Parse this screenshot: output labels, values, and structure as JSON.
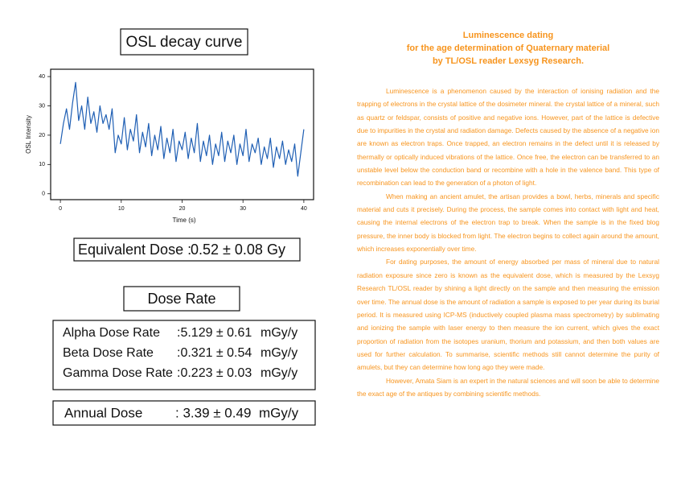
{
  "chart_data": {
    "type": "line",
    "title": "OSL decay curve",
    "x_label": "Time (s)",
    "y_label": "OSL Intensity",
    "x": [
      0,
      0.5,
      1,
      1.5,
      2,
      2.5,
      3,
      3.5,
      4,
      4.5,
      5,
      5.5,
      6,
      6.5,
      7,
      7.5,
      8,
      8.5,
      9,
      9.5,
      10,
      10.5,
      11,
      11.5,
      12,
      12.5,
      13,
      13.5,
      14,
      14.5,
      15,
      15.5,
      16,
      16.5,
      17,
      17.5,
      18,
      18.5,
      19,
      19.5,
      20,
      20.5,
      21,
      21.5,
      22,
      22.5,
      23,
      23.5,
      24,
      24.5,
      25,
      25.5,
      26,
      26.5,
      27,
      27.5,
      28,
      28.5,
      29,
      29.5,
      30,
      30.5,
      31,
      31.5,
      32,
      32.5,
      33,
      33.5,
      34,
      34.5,
      35,
      35.5,
      36,
      36.5,
      37,
      37.5,
      38,
      38.5,
      39,
      39.5,
      40
    ],
    "values": [
      17,
      24,
      29,
      22,
      31,
      38,
      25,
      30,
      22,
      33,
      24,
      28,
      21,
      30,
      24,
      27,
      22,
      29,
      14,
      20,
      17,
      26,
      15,
      22,
      18,
      27,
      14,
      21,
      16,
      24,
      13,
      20,
      15,
      23,
      12,
      19,
      14,
      22,
      11,
      18,
      15,
      21,
      12,
      19,
      14,
      24,
      11,
      18,
      13,
      20,
      10,
      17,
      13,
      21,
      11,
      18,
      14,
      20,
      10,
      17,
      13,
      22,
      11,
      17,
      14,
      19,
      10,
      16,
      12,
      19,
      9,
      16,
      12,
      18,
      10,
      15,
      11,
      17,
      6,
      14,
      22
    ],
    "color": "#1f5fb4",
    "xlim": [
      -1.6,
      41.6
    ],
    "xticks": [
      0,
      10,
      20,
      30,
      40
    ],
    "ylim": [
      -2,
      42.5
    ],
    "yticks": [
      0,
      10,
      20,
      30,
      40
    ]
  },
  "results": {
    "equivalent_dose": {
      "label": "Equivalent Dose :",
      "value": "0.52 ± 0.08 Gy"
    },
    "dose_rate_title": "Dose Rate",
    "dose_rates": [
      {
        "label": "Alpha Dose Rate",
        "value": ":5.129 ± 0.61",
        "unit": "mGy/y"
      },
      {
        "label": "Beta Dose Rate",
        "value": ":0.321 ± 0.54",
        "unit": "mGy/y"
      },
      {
        "label": "Gamma Dose Rate",
        "value": ":0.223 ± 0.03",
        "unit": "mGy/y"
      }
    ],
    "annual_dose": {
      "label": "Annual Dose",
      "value": ": 3.39 ± 0.49",
      "unit": "mGy/y"
    }
  },
  "article": {
    "title": [
      "Luminescence dating",
      "for the age determination of Quaternary material",
      "by TL/OSL reader Lexsyg Research."
    ],
    "paragraphs": [
      "Luminescence is a phenomenon caused by the interaction of ionising radiation and the trapping of electrons in the crystal lattice of the dosimeter mineral. the crystal lattice of a mineral, such as quartz or feldspar, consists of positive and negative ions. However, part of the lattice is defective due to impurities in the crystal and radiation damage. Defects caused by the absence of a negative ion are known as electron traps. Once trapped, an electron remains in the defect until it is released by thermally or optically induced vibrations of the lattice. Once free, the electron can be transferred to an unstable level below the conduction band or recombine with a hole in the valence band. This type of recombination can lead to the generation of a photon of light.",
      "When making an ancient amulet, the artisan provides a bowl, herbs, minerals and specific material and cuts it precisely. During the process, the sample comes into contact with light and heat, causing the internal electrons of the electron trap to break. When the sample is in the fixed blog pressure, the inner body is blocked from light. The electron begins to collect again around the amount, which increases exponentially over time.",
      "For dating purposes, the amount of energy absorbed per mass of mineral due to natural radiation exposure since zero is known as the equivalent dose, which is measured by the Lexsyg Research TL/OSL reader by shining a light directly on the sample and then measuring the emission over time. The annual dose is the amount of radiation a sample is exposed to per year during its burial period. It is measured using ICP-MS (inductively coupled plasma mass spectrometry) by sublimating and ionizing the sample with laser energy to then measure the ion current, which gives the exact proportion of radiation from the isotopes uranium, thorium and potassium, and then both values are used for further calculation. To summarise, scientific methods still cannot determine the purity of amulets, but they can determine how long ago they were made.",
      "However, Amata Siam is an expert in the natural sciences and will soon be able to determine the exact age of the antiques by combining scientific methods."
    ]
  }
}
